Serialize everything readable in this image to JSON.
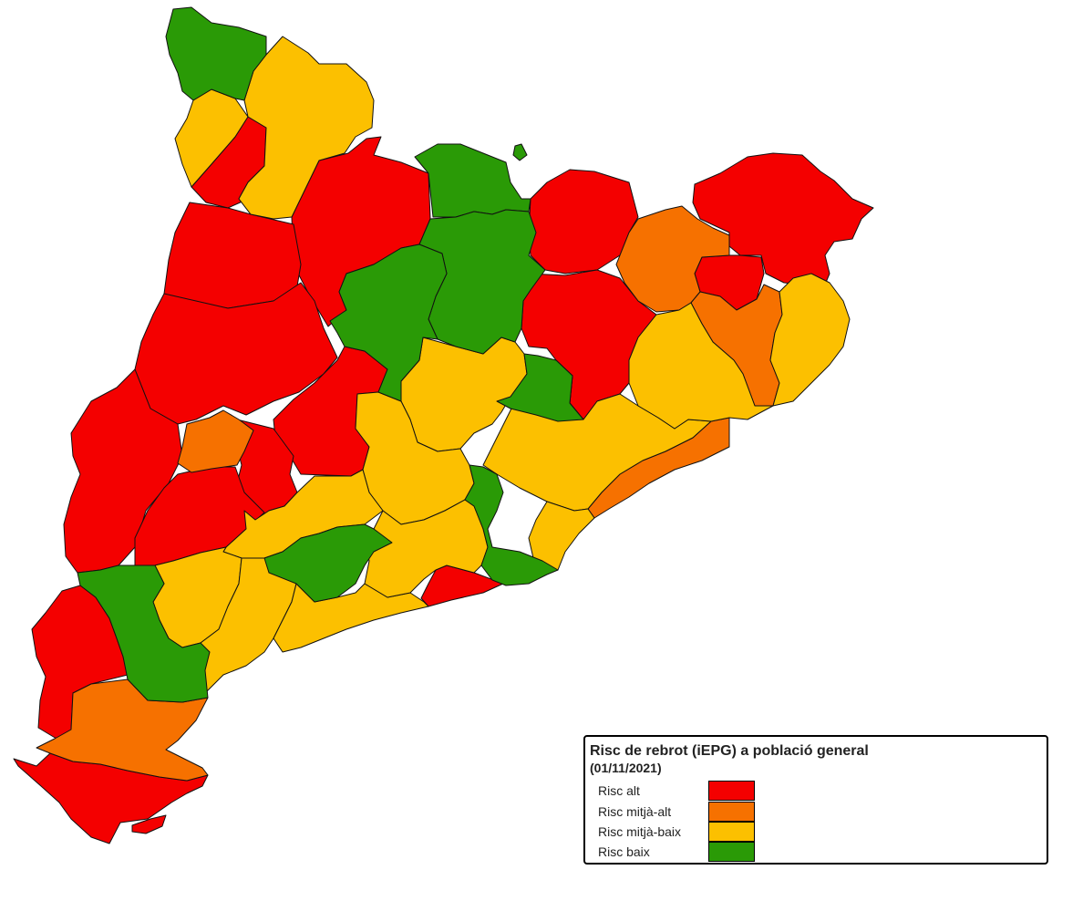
{
  "legend": {
    "title": "Risc de rebrot (iEPG) a població general",
    "date": "(01/11/2021)",
    "items": [
      {
        "label": "Risc alt",
        "color": "#f40000"
      },
      {
        "label": "Risc mitjà-alt",
        "color": "#f67100"
      },
      {
        "label": "Risc mitjà-baix",
        "color": "#fcc000"
      },
      {
        "label": "Risc baix",
        "color": "#2a9a06"
      }
    ]
  },
  "risk_colors": {
    "alt": "#f40000",
    "mitja_alt": "#f67100",
    "mitja_baix": "#fcc000",
    "baix": "#2a9a06"
  }
}
